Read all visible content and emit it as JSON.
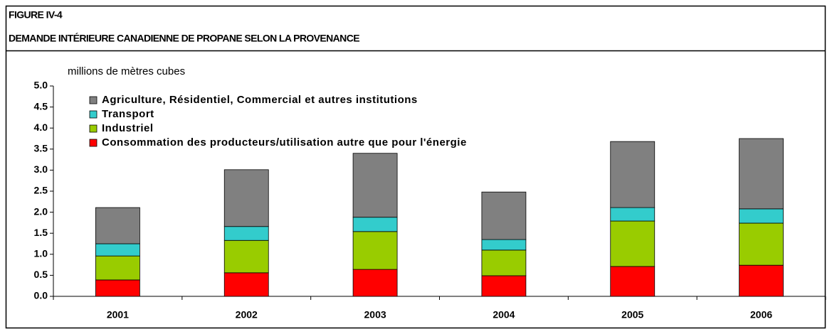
{
  "chart_data": {
    "type": "stacked_bar",
    "figure_label": "FIGURE IV-4",
    "title": "DEMANDE INTÉRIEURE CANADIENNE DE PROPANE SELON LA PROVENANCE",
    "y_label": "millions de mètres cubes",
    "categories": [
      "2001",
      "2002",
      "2003",
      "2004",
      "2005",
      "2006"
    ],
    "series": [
      {
        "name": "Consommation des producteurs/utilisation autre que pour l'énergie",
        "color": "#ff0000",
        "values": [
          0.39,
          0.56,
          0.64,
          0.49,
          0.71,
          0.74
        ]
      },
      {
        "name": "Industriel",
        "color": "#99cc00",
        "values": [
          0.57,
          0.77,
          0.9,
          0.61,
          1.08,
          1.0
        ]
      },
      {
        "name": "Transport",
        "color": "#33cccc",
        "values": [
          0.29,
          0.33,
          0.34,
          0.25,
          0.32,
          0.34
        ]
      },
      {
        "name": "Agriculture, Résidentiel, Commercial et autres institutions",
        "color": "#808080",
        "values": [
          0.86,
          1.35,
          1.52,
          1.13,
          1.57,
          1.67
        ]
      }
    ],
    "ylim": [
      0,
      5
    ],
    "yticks": [
      {
        "value": 0,
        "label": "0.0"
      },
      {
        "value": 0.5,
        "label": "0.5"
      },
      {
        "value": 1,
        "label": "1.0"
      },
      {
        "value": 1.5,
        "label": "1.5"
      },
      {
        "value": 2,
        "label": "2.0"
      },
      {
        "value": 2.5,
        "label": "2.5"
      },
      {
        "value": 3,
        "label": "3.0"
      },
      {
        "value": 3.5,
        "label": "3.5"
      },
      {
        "value": 4,
        "label": "4.0"
      },
      {
        "value": 4.5,
        "label": "4.5"
      },
      {
        "value": 5,
        "label": "5.0"
      }
    ]
  }
}
